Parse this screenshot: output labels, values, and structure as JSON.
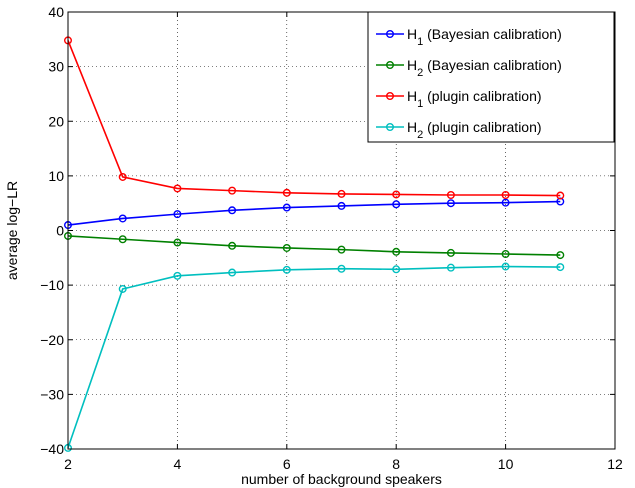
{
  "chart_data": {
    "type": "line",
    "xlabel": "number of background speakers",
    "ylabel": "average log−LR",
    "xlim": [
      2,
      12
    ],
    "ylim": [
      -40,
      40
    ],
    "xticks": [
      2,
      4,
      6,
      8,
      10,
      12
    ],
    "yticks": [
      -40,
      -30,
      -20,
      -10,
      0,
      10,
      20,
      30,
      40
    ],
    "xtick_labels": [
      "2",
      "4",
      "6",
      "8",
      "10",
      "12"
    ],
    "ytick_labels": [
      "−40",
      "−30",
      "−20",
      "−10",
      "0",
      "10",
      "20",
      "30",
      "40"
    ],
    "grid": true,
    "grid_style": "dotted",
    "legend_position": "top-right",
    "x": [
      2,
      3,
      4,
      5,
      6,
      7,
      8,
      9,
      10,
      11
    ],
    "series": [
      {
        "name": "H1 (Bayesian calibration)",
        "legend_base": "H",
        "legend_sub": "1",
        "legend_rest": " (Bayesian calibration)",
        "color": "#0000ff",
        "values": [
          1.0,
          2.2,
          3.0,
          3.7,
          4.2,
          4.5,
          4.8,
          5.0,
          5.1,
          5.3
        ]
      },
      {
        "name": "H2 (Bayesian calibration)",
        "legend_base": "H",
        "legend_sub": "2",
        "legend_rest": " (Bayesian calibration)",
        "color": "#008000",
        "values": [
          -1.0,
          -1.6,
          -2.2,
          -2.8,
          -3.2,
          -3.5,
          -3.9,
          -4.1,
          -4.3,
          -4.5
        ]
      },
      {
        "name": "H1 (plugin calibration)",
        "legend_base": "H",
        "legend_sub": "1",
        "legend_rest": " (plugin calibration)",
        "color": "#ff0000",
        "values": [
          34.8,
          9.8,
          7.7,
          7.3,
          6.9,
          6.7,
          6.6,
          6.5,
          6.5,
          6.4
        ]
      },
      {
        "name": "H2 (plugin calibration)",
        "legend_base": "H",
        "legend_sub": "2",
        "legend_rest": " (plugin calibration)",
        "color": "#00bfbf",
        "values": [
          -39.8,
          -10.7,
          -8.3,
          -7.7,
          -7.2,
          -7.0,
          -7.1,
          -6.8,
          -6.6,
          -6.7
        ]
      }
    ]
  }
}
